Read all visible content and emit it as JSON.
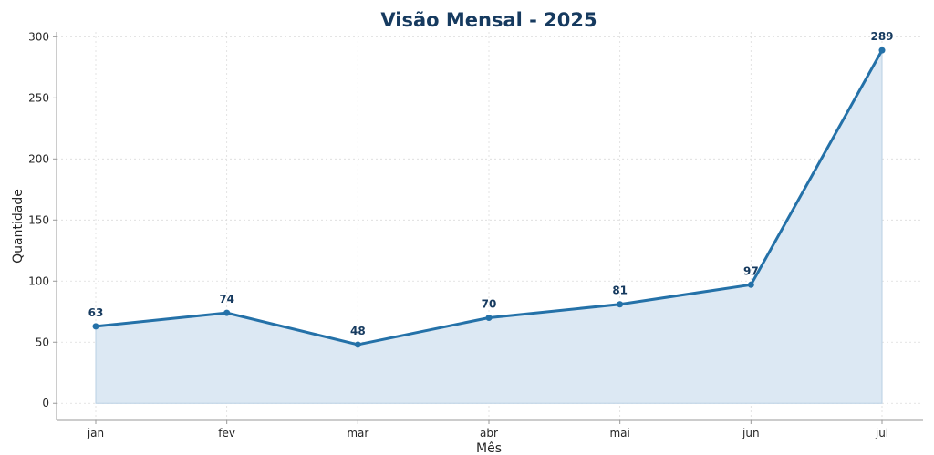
{
  "chart_data": {
    "type": "line",
    "title": "Visão Mensal - 2025",
    "xlabel": "Mês",
    "ylabel": "Quantidade",
    "categories": [
      "jan",
      "fev",
      "mar",
      "abr",
      "mai",
      "jun",
      "jul"
    ],
    "series": [
      {
        "values": [
          63,
          74,
          48,
          70,
          81,
          97,
          289
        ]
      }
    ],
    "ylim": [
      -14,
      304
    ],
    "yticks": [
      0,
      50,
      100,
      150,
      200,
      250,
      300
    ],
    "grid": true,
    "area_fill": true,
    "colors": {
      "line": "#2471a8",
      "fill": "#dce8f3",
      "title": "#163a5f",
      "labels": "#163a5f"
    }
  }
}
